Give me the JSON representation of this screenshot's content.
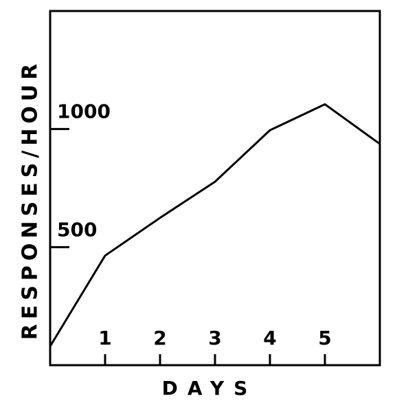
{
  "chart_data": {
    "type": "line",
    "x_label": "DAYS",
    "y_label": "RESPONSES/HOUR",
    "x": [
      0,
      1,
      2,
      3,
      4,
      5,
      6
    ],
    "series": [
      {
        "color": "#000000",
        "values": [
          80,
          464,
          624,
          777,
          995,
          1105,
          937
        ]
      }
    ],
    "xlim": [
      0,
      6
    ],
    "ylim": [
      0,
      1500
    ],
    "xticks": [
      1,
      2,
      3,
      4,
      5
    ],
    "yticks": [
      500,
      1000
    ],
    "grid": false
  }
}
